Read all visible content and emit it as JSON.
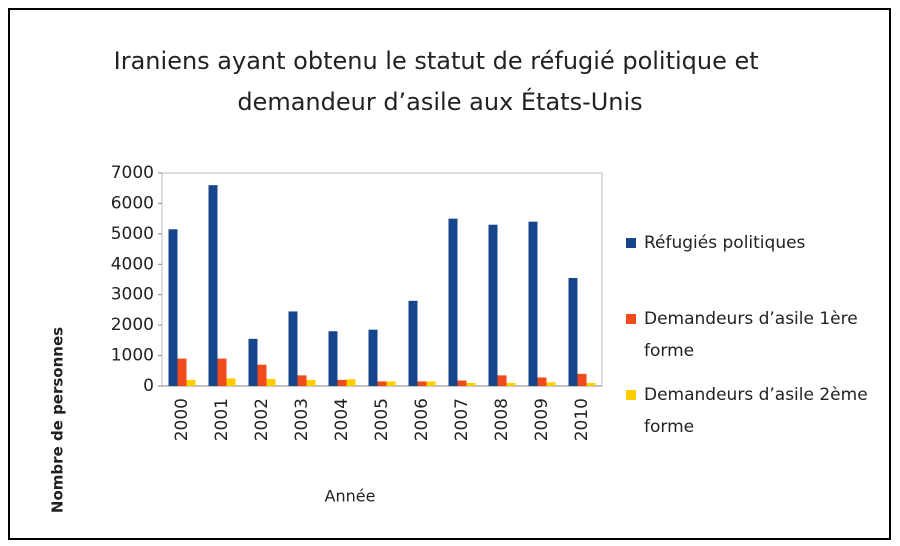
{
  "chart_data": {
    "type": "bar",
    "title": "Iraniens ayant obtenu le statut de réfugié politique et demandeur d’asile aux États-Unis",
    "x_label": "Année",
    "y_label": "Nombre de personnes",
    "categories": [
      "2000",
      "2001",
      "2002",
      "2003",
      "2004",
      "2005",
      "2006",
      "2007",
      "2008",
      "2009",
      "2010"
    ],
    "series": [
      {
        "name": "Réfugiés politiques",
        "color": "#17468a",
        "values": [
          5150,
          6600,
          1550,
          2450,
          1800,
          1850,
          2800,
          5500,
          5300,
          5400,
          3550
        ]
      },
      {
        "name": "Demandeurs d’asile 1ère forme",
        "color": "#f24a1a",
        "values": [
          900,
          900,
          700,
          350,
          200,
          150,
          150,
          180,
          350,
          280,
          400
        ]
      },
      {
        "name": "Demandeurs d’asile 2ème forme",
        "color": "#ffcc00",
        "values": [
          200,
          250,
          230,
          200,
          220,
          150,
          150,
          100,
          100,
          120,
          100
        ]
      }
    ],
    "ylim": [
      0,
      7000
    ],
    "yticks": [
      0,
      1000,
      2000,
      3000,
      4000,
      5000,
      6000,
      7000
    ],
    "legend": "right"
  }
}
